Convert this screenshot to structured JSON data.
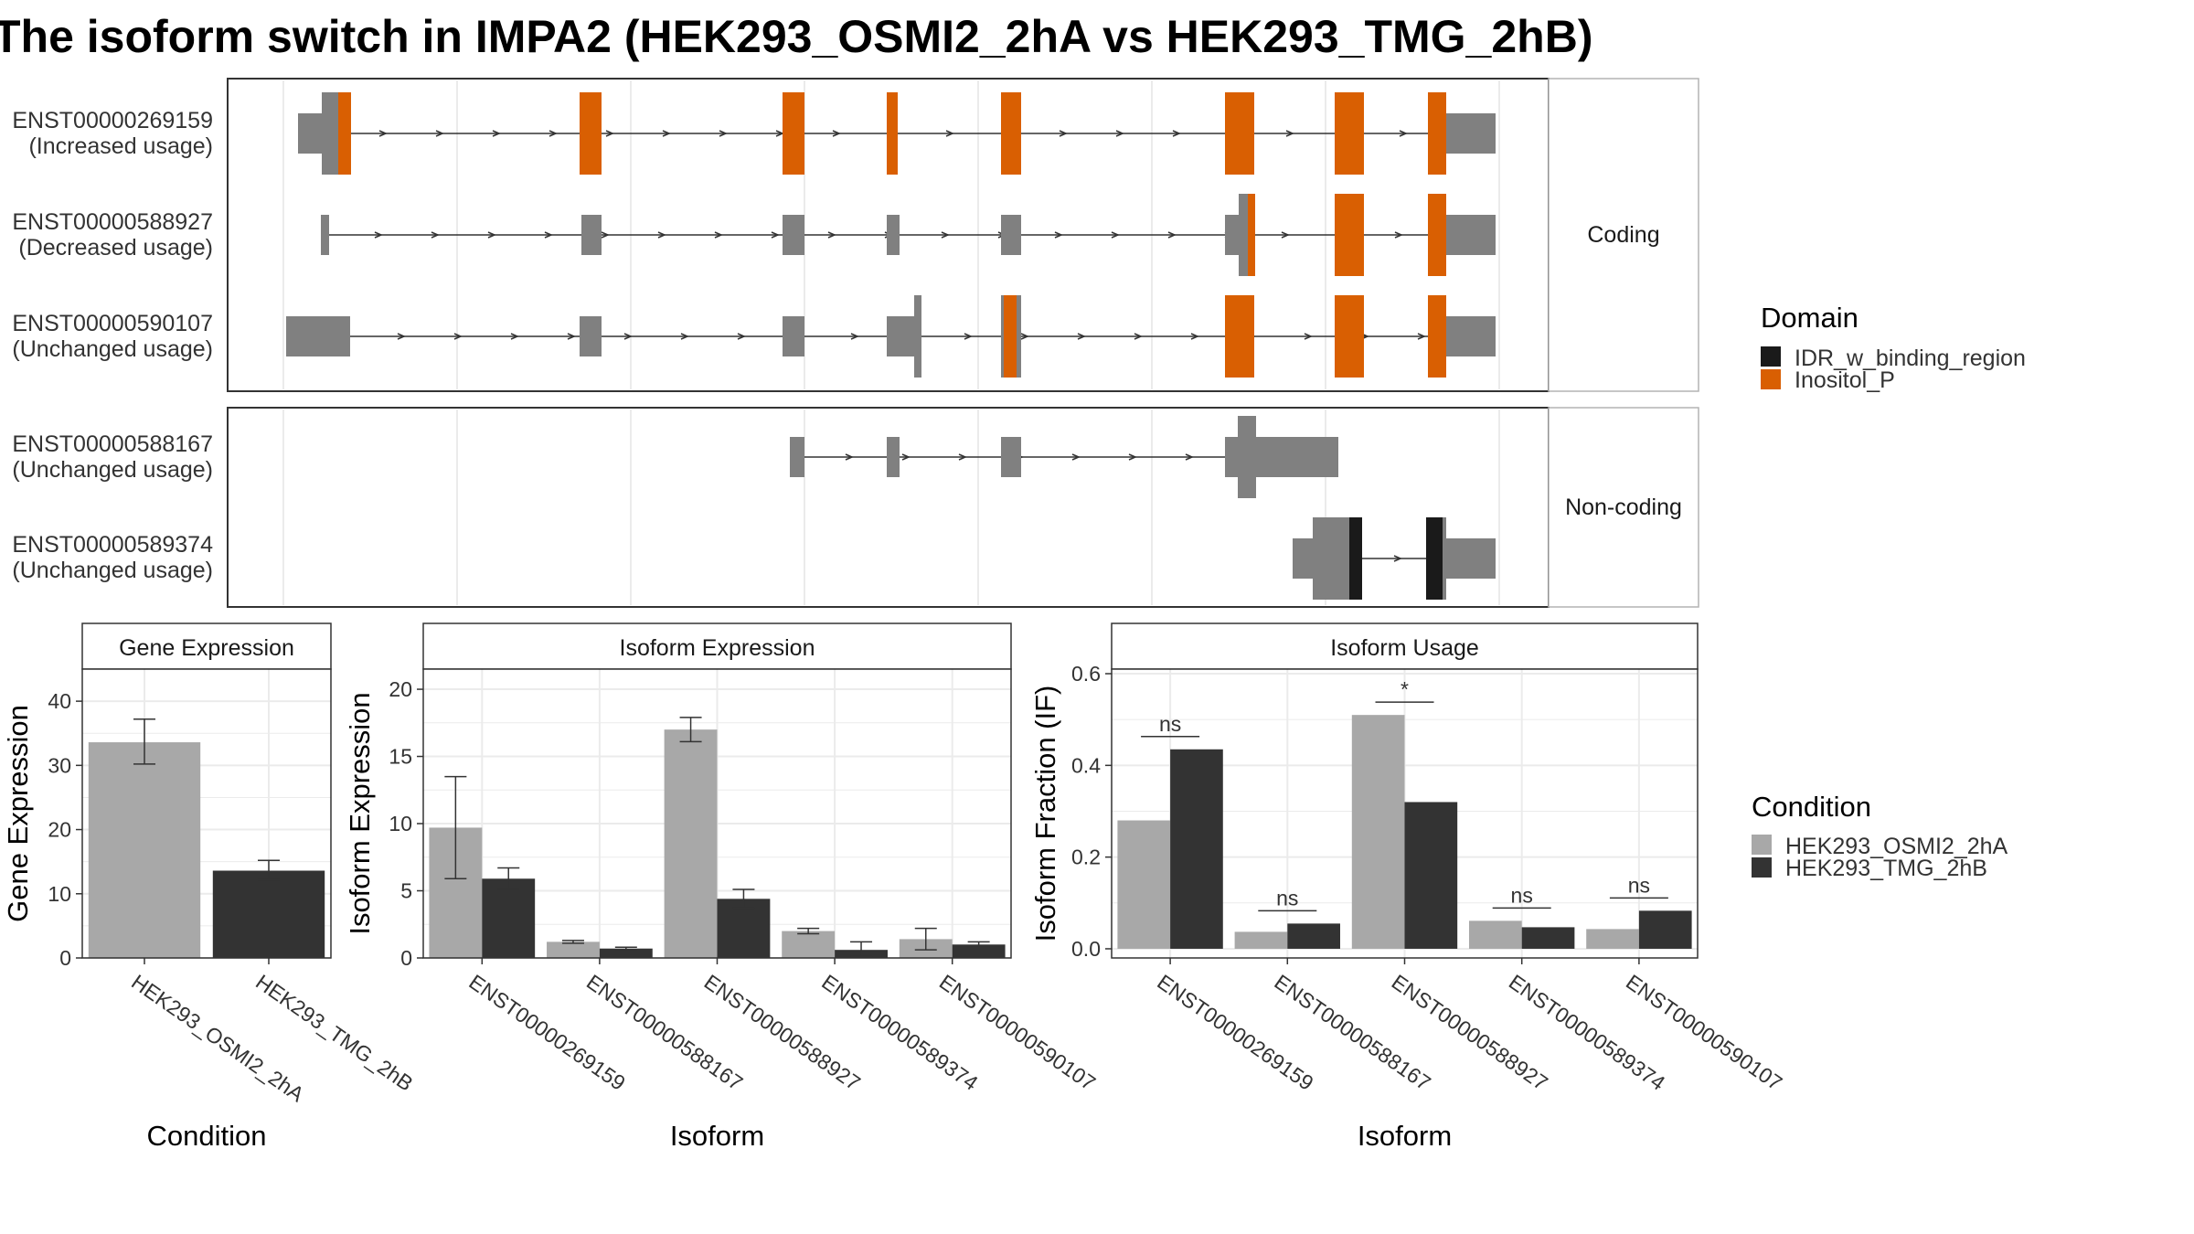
{
  "title": "The isoform switch in IMPA2 (HEK293_OSMI2_2hA vs HEK293_TMG_2hB)",
  "colors": {
    "exon": "#808080",
    "domain_inositol": "#D95F02",
    "domain_idr": "#1A1A1A",
    "cond_a": "#A8A8A8",
    "cond_b": "#333333",
    "grid": "#EBEBEB"
  },
  "structure": {
    "facets": [
      {
        "label": "Coding",
        "isoforms": [
          {
            "id": "ENST00000269159",
            "usage": "(Increased usage)"
          },
          {
            "id": "ENST00000588927",
            "usage": "(Decreased usage)"
          },
          {
            "id": "ENST00000590107",
            "usage": "(Unchanged usage)"
          }
        ]
      },
      {
        "label": "Non-coding",
        "isoforms": [
          {
            "id": "ENST00000588167",
            "usage": "(Unchanged usage)"
          },
          {
            "id": "ENST00000589374",
            "usage": "(Unchanged usage)"
          }
        ]
      }
    ]
  },
  "domain_legend": {
    "title": "Domain",
    "items": [
      {
        "label": "IDR_w_binding_region",
        "color": "#1A1A1A"
      },
      {
        "label": "Inositol_P",
        "color": "#D95F02"
      }
    ]
  },
  "condition_legend": {
    "title": "Condition",
    "items": [
      {
        "label": "HEK293_OSMI2_2hA",
        "color": "#A8A8A8"
      },
      {
        "label": "HEK293_TMG_2hB",
        "color": "#333333"
      }
    ]
  },
  "chart_data": [
    {
      "type": "bar",
      "title": "Gene Expression",
      "xlabel": "Condition",
      "ylabel": "Gene Expression",
      "ylim": [
        0,
        45
      ],
      "yticks": [
        0,
        10,
        20,
        30,
        40
      ],
      "categories": [
        "HEK293_OSMI2_2hA",
        "HEK293_TMG_2hB"
      ],
      "values": [
        33.6,
        13.6
      ],
      "errors": [
        [
          30.2,
          37.2
        ],
        [
          12.2,
          15.2
        ]
      ]
    },
    {
      "type": "bar",
      "title": "Isoform Expression",
      "xlabel": "Isoform",
      "ylabel": "Isoform Expression",
      "ylim": [
        0,
        21.5
      ],
      "yticks": [
        0,
        5,
        10,
        15,
        20
      ],
      "categories": [
        "ENST00000269159",
        "ENST00000588167",
        "ENST00000588927",
        "ENST00000589374",
        "ENST00000590107"
      ],
      "series": [
        {
          "name": "HEK293_OSMI2_2hA",
          "values": [
            9.7,
            1.2,
            17.0,
            2.0,
            1.4
          ],
          "errors": [
            [
              5.9,
              13.5
            ],
            [
              1.1,
              1.3
            ],
            [
              16.1,
              17.9
            ],
            [
              1.8,
              2.2
            ],
            [
              0.6,
              2.2
            ]
          ]
        },
        {
          "name": "HEK293_TMG_2hB",
          "values": [
            5.9,
            0.7,
            4.4,
            0.6,
            1.0
          ],
          "errors": [
            [
              5.1,
              6.7
            ],
            [
              0.6,
              0.8
            ],
            [
              3.7,
              5.1
            ],
            [
              0.1,
              1.2
            ],
            [
              0.8,
              1.2
            ]
          ]
        }
      ]
    },
    {
      "type": "bar",
      "title": "Isoform Usage",
      "xlabel": "Isoform",
      "ylabel": "Isoform Fraction (IF)",
      "ylim": [
        -0.02,
        0.61
      ],
      "yticks": [
        0.0,
        0.2,
        0.4,
        0.6
      ],
      "ytick_labels": [
        "0.0",
        "0.2",
        "0.4",
        "0.6"
      ],
      "categories": [
        "ENST00000269159",
        "ENST00000588167",
        "ENST00000588927",
        "ENST00000589374",
        "ENST00000590107"
      ],
      "series": [
        {
          "name": "HEK293_OSMI2_2hA",
          "values": [
            0.28,
            0.037,
            0.51,
            0.061,
            0.043
          ]
        },
        {
          "name": "HEK293_TMG_2hB",
          "values": [
            0.435,
            0.055,
            0.32,
            0.047,
            0.083
          ]
        }
      ],
      "significance": [
        "ns",
        "ns",
        "*",
        "ns",
        "ns"
      ]
    }
  ]
}
